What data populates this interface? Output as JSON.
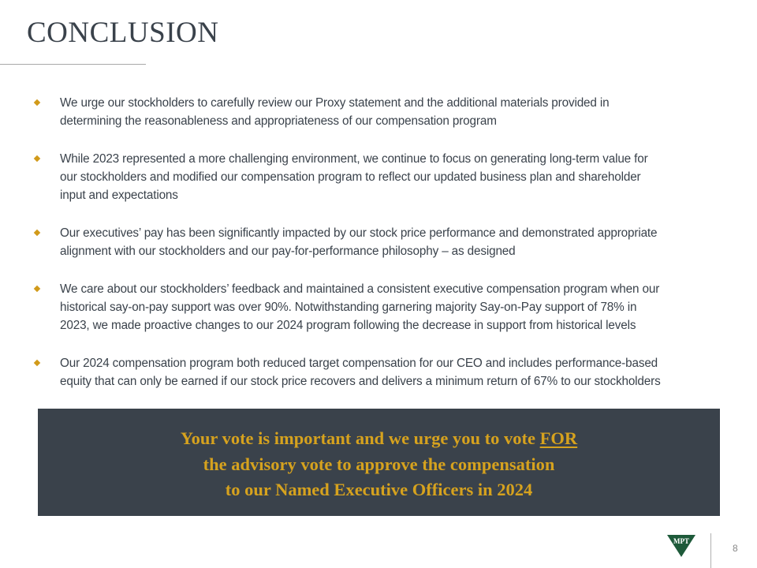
{
  "title": "CONCLUSION",
  "bullets": [
    {
      "lines": [
        "We urge our stockholders to carefully review our Proxy statement and the additional materials provided in",
        "determining the reasonableness and appropriateness of our compensation program"
      ]
    },
    {
      "lines": [
        "While 2023 represented a more challenging environment, we continue to focus on generating long-term value for",
        "our stockholders and modified our compensation program to reflect our updated business plan and shareholder",
        "input and expectations"
      ]
    },
    {
      "lines": [
        "Our executives’ pay has been significantly impacted by our stock price performance and demonstrated appropriate",
        "alignment with our stockholders and our pay-for-performance philosophy –  as designed"
      ]
    },
    {
      "lines": [
        "We care about our stockholders’ feedback and maintained a consistent executive compensation program when our",
        "historical say-on-pay support was over 90%.  Notwithstanding garnering majority Say-on-Pay support of 78% in",
        "2023, we made proactive changes to our 2024 program following the decrease in support from historical levels"
      ]
    },
    {
      "lines": [
        "Our 2024 compensation program both reduced target compensation for our CEO and includes performance-based",
        "equity that can only be earned if our stock price recovers and delivers a minimum return of 67% to our stockholders"
      ]
    }
  ],
  "banner": {
    "line1_prefix": "Your vote is important and we urge you to vote ",
    "line1_emphasis": "FOR",
    "line2": "the advisory vote to approve the compensation",
    "line3": "to our Named Executive Officers in 2024"
  },
  "footer": {
    "logo_text": "MPT",
    "page_number": "8"
  },
  "colors": {
    "accent_gold": "#d19a1a",
    "banner_bg": "#3a424b",
    "text": "#3a424b",
    "logo_green": "#1e5a3a"
  }
}
